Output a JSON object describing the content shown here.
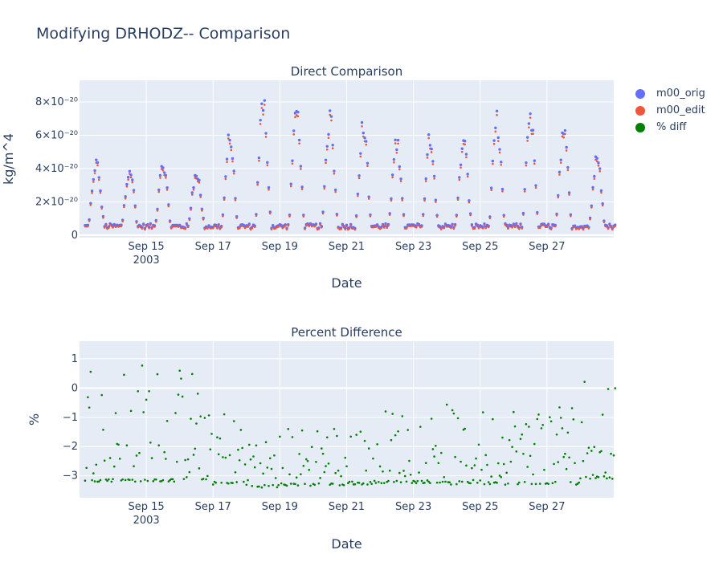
{
  "title": "Modifying DRHODZ-- Comparison",
  "colors": {
    "orig": "#636efa",
    "edit": "#ef553b",
    "diff": "#008000",
    "plot_bg": "#e5ecf6",
    "text": "#2a3f5f"
  },
  "legend": [
    {
      "name": "m00_orig",
      "color": "#636efa"
    },
    {
      "name": "m00_edit",
      "color": "#ef553b"
    },
    {
      "name": "% diff",
      "color": "#008000"
    }
  ],
  "chart_data": [
    {
      "type": "scatter",
      "title": "Direct Comparison",
      "xlabel": "Date",
      "ylabel": "kg/m^4",
      "x_range": [
        "2003-09-13T00:00",
        "2003-09-28T23:59"
      ],
      "ylim": [
        -1.5e-21,
        9.3e-20
      ],
      "x_ticks": [
        {
          "value": "2003-09-15",
          "label": "Sep 15",
          "sublabel": "2003"
        },
        {
          "value": "2003-09-17",
          "label": "Sep 17"
        },
        {
          "value": "2003-09-19",
          "label": "Sep 19"
        },
        {
          "value": "2003-09-21",
          "label": "Sep 21"
        },
        {
          "value": "2003-09-23",
          "label": "Sep 23"
        },
        {
          "value": "2003-09-25",
          "label": "Sep 25"
        },
        {
          "value": "2003-09-27",
          "label": "Sep 27"
        }
      ],
      "y_ticks": [
        {
          "value": 0,
          "label": "0"
        },
        {
          "value": 2e-20,
          "label": "2×10⁻²⁰"
        },
        {
          "value": 4e-20,
          "label": "4×10⁻²⁰"
        },
        {
          "value": 6e-20,
          "label": "6×10⁻²⁰"
        },
        {
          "value": 8e-20,
          "label": "8×10⁻²⁰"
        }
      ],
      "daily_peaks_1e20": [
        {
          "date": "2003-09-13",
          "peak": 4.7
        },
        {
          "date": "2003-09-14",
          "peak": 4.4
        },
        {
          "date": "2003-09-15",
          "peak": 4.5
        },
        {
          "date": "2003-09-16",
          "peak": 4.2
        },
        {
          "date": "2003-09-17",
          "peak": 6.4
        },
        {
          "date": "2003-09-18",
          "peak": 8.8
        },
        {
          "date": "2003-09-19",
          "peak": 8.2
        },
        {
          "date": "2003-09-20",
          "peak": 7.7
        },
        {
          "date": "2003-09-21",
          "peak": 7.2
        },
        {
          "date": "2003-09-22",
          "peak": 6.2
        },
        {
          "date": "2003-09-23",
          "peak": 6.6
        },
        {
          "date": "2003-09-24",
          "peak": 6.1
        },
        {
          "date": "2003-09-25",
          "peak": 7.5
        },
        {
          "date": "2003-09-26",
          "peak": 8.0
        },
        {
          "date": "2003-09-27",
          "peak": 6.8
        },
        {
          "date": "2003-09-28",
          "peak": 5.0
        }
      ],
      "daily_min_1e20": 0.4,
      "series": [
        {
          "name": "m00_orig",
          "color": "#636efa"
        },
        {
          "name": "m00_edit",
          "color": "#ef553b"
        }
      ]
    },
    {
      "type": "scatter",
      "title": "Percent Difference",
      "xlabel": "Date",
      "ylabel": "%",
      "x_range": [
        "2003-09-13T00:00",
        "2003-09-28T23:59"
      ],
      "ylim": [
        -3.75,
        1.6
      ],
      "x_ticks": [
        {
          "value": "2003-09-15",
          "label": "Sep 15",
          "sublabel": "2003"
        },
        {
          "value": "2003-09-17",
          "label": "Sep 17"
        },
        {
          "value": "2003-09-19",
          "label": "Sep 19"
        },
        {
          "value": "2003-09-21",
          "label": "Sep 21"
        },
        {
          "value": "2003-09-23",
          "label": "Sep 23"
        },
        {
          "value": "2003-09-25",
          "label": "Sep 25"
        },
        {
          "value": "2003-09-27",
          "label": "Sep 27"
        }
      ],
      "y_ticks": [
        {
          "value": 1,
          "label": "1"
        },
        {
          "value": 0,
          "label": "0"
        },
        {
          "value": -1,
          "label": "−1"
        },
        {
          "value": -2,
          "label": "−2"
        },
        {
          "value": -3,
          "label": "−3"
        }
      ],
      "daily_range_pct": [
        {
          "date": "2003-09-13",
          "low": -3.2,
          "high": 1.2
        },
        {
          "date": "2003-09-14",
          "low": -3.2,
          "high": 1.0
        },
        {
          "date": "2003-09-15",
          "low": -3.2,
          "high": 0.9
        },
        {
          "date": "2003-09-16",
          "low": -3.2,
          "high": 0.8
        },
        {
          "date": "2003-09-17",
          "low": -3.3,
          "high": -0.6
        },
        {
          "date": "2003-09-18",
          "low": -3.4,
          "high": -1.4
        },
        {
          "date": "2003-09-19",
          "low": -3.35,
          "high": -1.3
        },
        {
          "date": "2003-09-20",
          "low": -3.35,
          "high": -1.1
        },
        {
          "date": "2003-09-21",
          "low": -3.3,
          "high": -0.9
        },
        {
          "date": "2003-09-22",
          "low": -3.25,
          "high": -0.7
        },
        {
          "date": "2003-09-23",
          "low": -3.25,
          "high": -0.6
        },
        {
          "date": "2003-09-24",
          "low": -3.3,
          "high": -0.5
        },
        {
          "date": "2003-09-25",
          "low": -3.3,
          "high": -0.7
        },
        {
          "date": "2003-09-26",
          "low": -3.3,
          "high": -0.4
        },
        {
          "date": "2003-09-27",
          "low": -3.3,
          "high": -0.3
        },
        {
          "date": "2003-09-28",
          "low": -3.1,
          "high": 0.6
        }
      ],
      "series": [
        {
          "name": "% diff",
          "color": "#008000"
        }
      ]
    }
  ]
}
